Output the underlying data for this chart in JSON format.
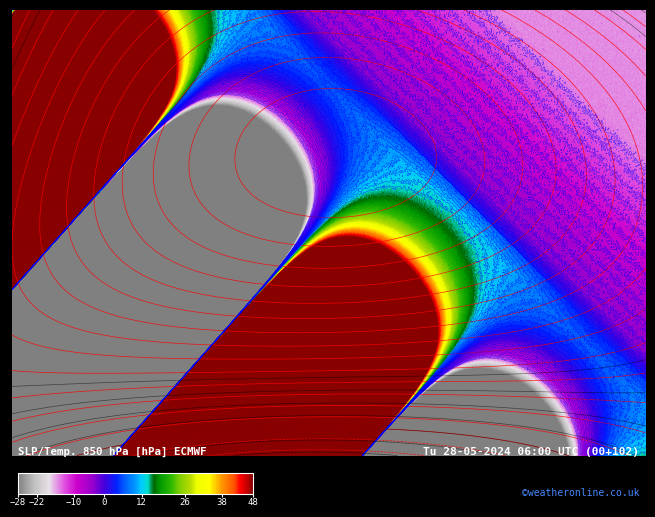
{
  "title_left": "SLP/Temp. 850 hPa [hPa] ECMWF",
  "title_right": "Tu 28-05-2024 06:00 UTC (00+102)",
  "credit": "©weatheronline.co.uk",
  "colorbar_ticks": [
    -28,
    -22,
    -10,
    0,
    12,
    26,
    38,
    48
  ],
  "colorbar_vmin": -28,
  "colorbar_vmax": 48,
  "colormap_nodes": [
    [
      0.0,
      "#808080"
    ],
    [
      0.068,
      "#c0c0c0"
    ],
    [
      0.132,
      "#e8e0e8"
    ],
    [
      0.197,
      "#e050e0"
    ],
    [
      0.25,
      "#cc00cc"
    ],
    [
      0.316,
      "#9900cc"
    ],
    [
      0.368,
      "#4400dd"
    ],
    [
      0.421,
      "#0022ff"
    ],
    [
      0.447,
      "#0055ff"
    ],
    [
      0.5,
      "#0099ff"
    ],
    [
      0.526,
      "#00ccff"
    ],
    [
      0.553,
      "#00ddcc"
    ],
    [
      0.579,
      "#006600"
    ],
    [
      0.605,
      "#009900"
    ],
    [
      0.658,
      "#33bb00"
    ],
    [
      0.684,
      "#77cc00"
    ],
    [
      0.737,
      "#bbdd00"
    ],
    [
      0.763,
      "#eeff00"
    ],
    [
      0.816,
      "#ffff00"
    ],
    [
      0.842,
      "#ffcc00"
    ],
    [
      0.868,
      "#ff9900"
    ],
    [
      0.921,
      "#ff5500"
    ],
    [
      0.947,
      "#ff0000"
    ],
    [
      0.974,
      "#cc0000"
    ],
    [
      1.0,
      "#880000"
    ]
  ],
  "fig_bg": "#000000"
}
